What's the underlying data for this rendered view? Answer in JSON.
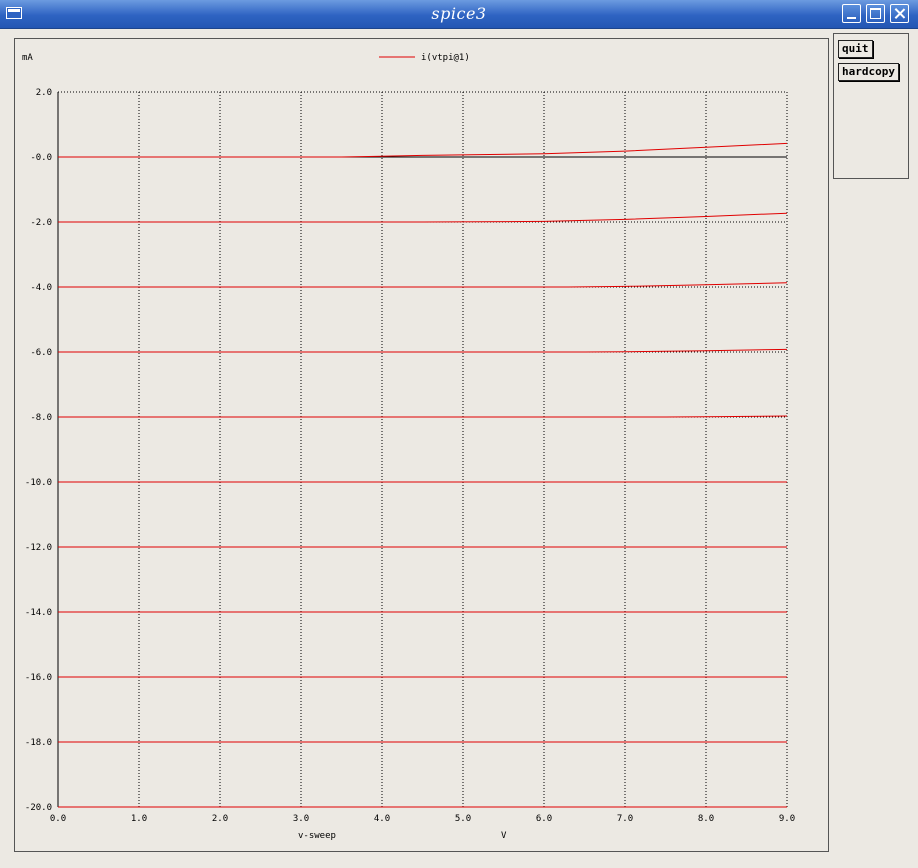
{
  "window": {
    "title": "spice3"
  },
  "buttons": {
    "quit": "quit",
    "hardcopy": "hardcopy"
  },
  "chart_data": {
    "type": "line",
    "title": "",
    "xlabel": "v-sweep",
    "xunit": "V",
    "ylabel": "mA",
    "xlim": [
      0,
      9
    ],
    "ylim": [
      -20,
      2
    ],
    "xticks": [
      "0.0",
      "1.0",
      "2.0",
      "3.0",
      "4.0",
      "5.0",
      "6.0",
      "7.0",
      "8.0",
      "9.0"
    ],
    "yticks": [
      "2.0",
      "-0.0",
      "-2.0",
      "-4.0",
      "-6.0",
      "-8.0",
      "-10.0",
      "-12.0",
      "-14.0",
      "-16.0",
      "-18.0",
      "-20.0"
    ],
    "grid": true,
    "legend": "top-center",
    "series_color": "#e00000",
    "series": [
      {
        "name": "i(vtpi@1)",
        "x": [
          0,
          3.5,
          4.5,
          6,
          7,
          8,
          9
        ],
        "y": [
          0,
          0,
          0.05,
          0.1,
          0.18,
          0.3,
          0.42
        ]
      },
      {
        "x": [
          0,
          4.5,
          6,
          7,
          8,
          9
        ],
        "y": [
          -2,
          -2,
          -1.98,
          -1.92,
          -1.83,
          -1.73
        ]
      },
      {
        "x": [
          0,
          6.3,
          7,
          8,
          9
        ],
        "y": [
          -4,
          -4,
          -3.98,
          -3.93,
          -3.87
        ]
      },
      {
        "x": [
          0,
          6.5,
          7,
          8,
          9
        ],
        "y": [
          -6,
          -6,
          -5.99,
          -5.96,
          -5.92
        ]
      },
      {
        "x": [
          0,
          7.5,
          8,
          9
        ],
        "y": [
          -8,
          -8,
          -7.99,
          -7.97
        ]
      },
      {
        "x": [
          0,
          9
        ],
        "y": [
          -10,
          -10
        ]
      },
      {
        "x": [
          0,
          9
        ],
        "y": [
          -12,
          -12
        ]
      },
      {
        "x": [
          0,
          9
        ],
        "y": [
          -14,
          -14
        ]
      },
      {
        "x": [
          0,
          9
        ],
        "y": [
          -16,
          -16
        ]
      },
      {
        "x": [
          0,
          9
        ],
        "y": [
          -18,
          -18
        ]
      },
      {
        "x": [
          0,
          9
        ],
        "y": [
          -20,
          -20
        ]
      }
    ]
  }
}
